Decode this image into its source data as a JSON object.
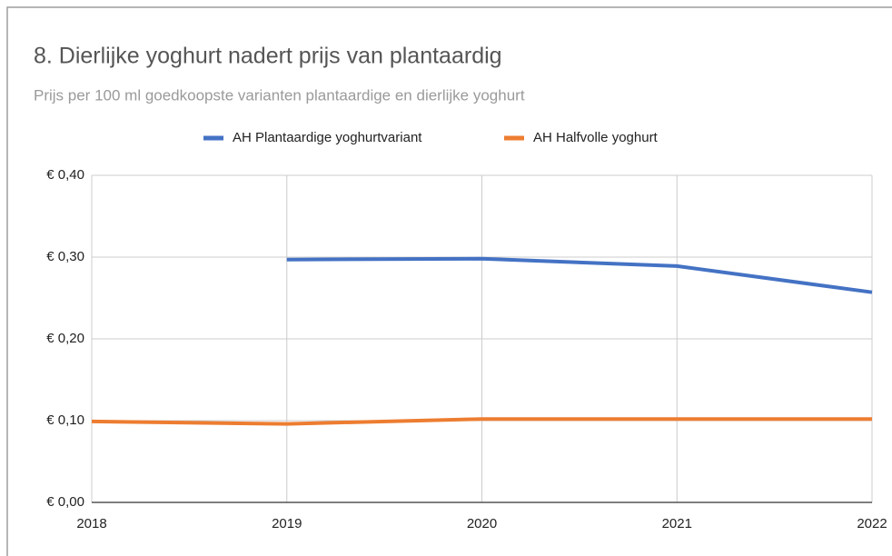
{
  "chart_data": {
    "type": "line",
    "title": "8. Dierlijke yoghurt nadert prijs van plantaardig",
    "subtitle": "Prijs per 100 ml goedkoopste varianten plantaardige en dierlijke yoghurt",
    "x": [
      2018,
      2019,
      2020,
      2021,
      2022
    ],
    "xlim": [
      2018,
      2022
    ],
    "xticks": [
      2018,
      2019,
      2020,
      2021,
      2022
    ],
    "ylim": [
      0,
      0.4
    ],
    "yticks": [
      {
        "value": 0,
        "label": "€ 0,00"
      },
      {
        "value": 0.1,
        "label": "€ 0,10"
      },
      {
        "value": 0.2,
        "label": "€ 0,20"
      },
      {
        "value": 0.3,
        "label": "€ 0,30"
      },
      {
        "value": 0.4,
        "label": "€ 0,40"
      }
    ],
    "grid": true,
    "legend": "top",
    "series": [
      {
        "name": "AH Plantaardige yoghurtvariant",
        "color": "#4472c4",
        "values": [
          null,
          0.297,
          0.298,
          0.289,
          0.257
        ]
      },
      {
        "name": "AH Halfvolle yoghurt",
        "color": "#ed7d31",
        "values": [
          0.099,
          0.096,
          0.102,
          0.102,
          0.102
        ]
      }
    ]
  }
}
